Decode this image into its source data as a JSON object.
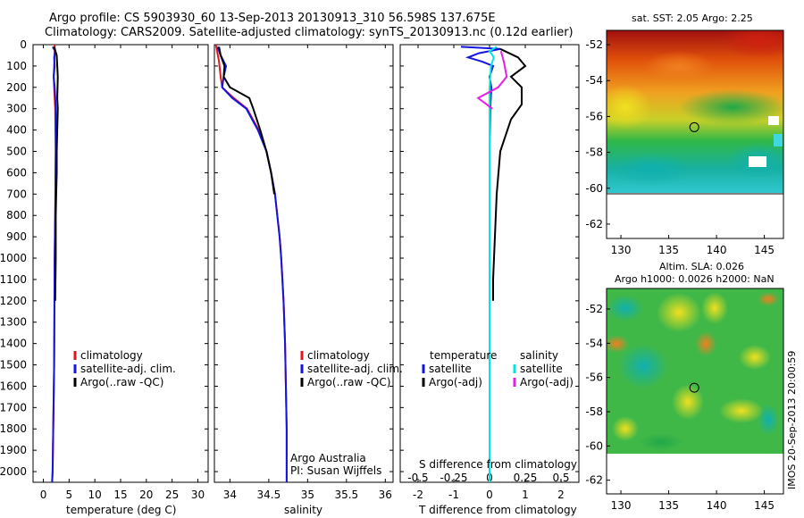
{
  "header": {
    "line1": "Argo profile: CS 5903930_60 13-Sep-2013 20130913_310 56.598S 137.675E",
    "line2": "Climatology: CARS2009. Satellite-adjusted climatology: synTS_20130913.nc (0.12d earlier)"
  },
  "sst_map": {
    "title": "sat. SST: 2.05 Argo: 2.25"
  },
  "sla_map": {
    "title_line1": "Altim. SLA: 0.026",
    "title_line2": "Argo h1000: 0.0026 h2000: NaN"
  },
  "credits": {
    "agency": "Argo Australia",
    "pi": "PI: Susan Wijffels",
    "stamp": "IMOS 20-Sep-2013 20:00:59"
  },
  "colors": {
    "climatology": "#e8141c",
    "satellite": "#1414e0",
    "argo": "#000000",
    "sal_satellite": "#00e6e6",
    "sal_argo": "#e61ee6"
  },
  "chart_data": [
    {
      "type": "line",
      "name": "temperature panel",
      "xlabel": "temperature (deg C)",
      "ylabel": "",
      "xlim": [
        -2,
        32
      ],
      "ylim": [
        2050,
        0
      ],
      "xticks": [
        "0",
        "5",
        "10",
        "15",
        "20",
        "25",
        "30"
      ],
      "yticks": [
        "0",
        "100",
        "200",
        "300",
        "400",
        "500",
        "600",
        "700",
        "800",
        "900",
        "1000",
        "1100",
        "1200",
        "1300",
        "1400",
        "1500",
        "1600",
        "1700",
        "1800",
        "1900",
        "2000"
      ],
      "legend": [
        "climatology",
        "satellite-adj. clim.",
        "Argo(..raw -QC)"
      ],
      "series": [
        {
          "name": "climatology",
          "depth": [
            0,
            50,
            100,
            150,
            200,
            300,
            500,
            800,
            1000,
            1500,
            2000,
            2050
          ],
          "values": [
            2.2,
            2.2,
            2.1,
            2.0,
            2.1,
            2.3,
            2.4,
            2.3,
            2.2,
            2.1,
            1.8,
            1.7
          ]
        },
        {
          "name": "satellite-adj. clim.",
          "depth": [
            10,
            30,
            60,
            100,
            150,
            200,
            300,
            500,
            800,
            1000,
            1500,
            2000,
            2050
          ],
          "values": [
            1.8,
            2.3,
            2.1,
            2.2,
            2.0,
            2.2,
            2.4,
            2.4,
            2.3,
            2.2,
            2.1,
            1.8,
            1.7
          ]
        },
        {
          "name": "Argo(..raw -QC)",
          "depth": [
            10,
            50,
            100,
            150,
            250,
            300,
            400,
            500,
            600,
            700,
            800,
            1000,
            1200
          ],
          "values": [
            2.1,
            2.6,
            2.7,
            2.8,
            2.7,
            2.8,
            2.7,
            2.6,
            2.6,
            2.5,
            2.4,
            2.4,
            2.3
          ]
        }
      ]
    },
    {
      "type": "line",
      "name": "salinity panel",
      "xlabel": "salinity",
      "xlim": [
        33.8,
        36.1
      ],
      "ylim": [
        2050,
        0
      ],
      "xticks": [
        "34",
        "34.5",
        "35",
        "35.5",
        "36"
      ],
      "legend": [
        "climatology",
        "satellite-adj. clim.",
        "Argo(..raw -QC)"
      ],
      "series": [
        {
          "name": "climatology",
          "depth": [
            0,
            80,
            150,
            200,
            250,
            300,
            400,
            500,
            600,
            700,
            800,
            900,
            1000,
            1200,
            1400,
            1600,
            1800,
            2000,
            2050
          ],
          "values": [
            33.82,
            33.86,
            33.88,
            33.9,
            34.05,
            34.22,
            34.37,
            34.47,
            34.53,
            34.58,
            34.61,
            34.64,
            34.66,
            34.69,
            34.71,
            34.72,
            34.73,
            34.73,
            34.73
          ]
        },
        {
          "name": "satellite-adj. clim.",
          "depth": [
            10,
            50,
            100,
            150,
            200,
            250,
            300,
            400,
            500,
            600,
            700,
            800,
            900,
            1000,
            1200,
            1400,
            1600,
            1800,
            2000,
            2050
          ],
          "values": [
            33.84,
            33.88,
            33.95,
            33.92,
            33.9,
            34.03,
            34.21,
            34.36,
            34.47,
            34.53,
            34.58,
            34.61,
            34.64,
            34.66,
            34.69,
            34.71,
            34.72,
            34.73,
            34.73,
            34.73
          ]
        },
        {
          "name": "Argo(..raw -QC)",
          "depth": [
            10,
            50,
            100,
            150,
            200,
            250,
            300,
            400,
            500,
            600,
            700
          ],
          "values": [
            33.86,
            33.88,
            33.93,
            33.92,
            34.0,
            34.25,
            34.3,
            34.39,
            34.47,
            34.53,
            34.57
          ]
        }
      ]
    },
    {
      "type": "line",
      "name": "difference panel",
      "xlabel": "T difference from climatology",
      "xlabel2": "S difference from climatology",
      "xlim": [
        -2.5,
        2.5
      ],
      "ylim": [
        2050,
        0
      ],
      "xticks_T": [
        "-2",
        "-1",
        "0",
        "1",
        "2"
      ],
      "xticks_S": [
        "-0.5",
        "-0.25",
        "0",
        "0.25",
        "0.5"
      ],
      "legend": {
        "temperature": [
          "satellite",
          "Argo(-adj)"
        ],
        "salinity": [
          "satellite",
          "Argo(-adj)"
        ],
        "temperature_label": "temperature",
        "salinity_label": "salinity"
      },
      "series": [
        {
          "name": "satellite",
          "depth": [
            10,
            20,
            40,
            60,
            80,
            100,
            150,
            200,
            300,
            500,
            1000,
            2000
          ],
          "values": [
            -0.8,
            0.3,
            -0.3,
            -0.6,
            -0.2,
            0.1,
            0.0,
            0.05,
            0.02,
            0.0,
            0.0,
            0.0
          ]
        },
        {
          "name": "Argo(-adj)",
          "depth": [
            20,
            60,
            100,
            150,
            200,
            280,
            350,
            500,
            700,
            900,
            1100,
            1200
          ],
          "values": [
            0.3,
            0.8,
            1.0,
            0.6,
            0.9,
            0.9,
            0.6,
            0.3,
            0.2,
            0.15,
            0.1,
            0.1
          ]
        },
        {
          "name": "satellite (S)",
          "depth": [
            10,
            30,
            60,
            100,
            200,
            400,
            800,
            1200,
            1600,
            2000,
            2050
          ],
          "values": [
            0.05,
            0.0,
            0.03,
            0.01,
            0.0,
            0.0,
            0.0,
            0.0,
            0.0,
            0.0,
            0.0
          ]
        },
        {
          "name": "Argo(-adj) (S)",
          "depth": [
            30,
            80,
            150,
            200,
            250,
            300
          ],
          "values": [
            0.08,
            0.1,
            0.12,
            0.06,
            -0.08,
            0.02
          ]
        }
      ]
    },
    {
      "type": "heatmap",
      "name": "sst map",
      "xlim": [
        128.5,
        147
      ],
      "ylim": [
        -62.8,
        -51.2
      ],
      "xticks": [
        "130",
        "135",
        "140",
        "145"
      ],
      "yticks": [
        "-52",
        "-54",
        "-56",
        "-58",
        "-60",
        "-62"
      ],
      "marker": {
        "lon": 137.675,
        "lat": -56.598
      }
    },
    {
      "type": "heatmap",
      "name": "sla map",
      "xlim": [
        128.5,
        147
      ],
      "ylim": [
        -62.8,
        -50.8
      ],
      "xticks": [
        "130",
        "135",
        "140",
        "145"
      ],
      "yticks": [
        "-52",
        "-54",
        "-56",
        "-58",
        "-60",
        "-62"
      ],
      "marker": {
        "lon": 137.675,
        "lat": -56.598
      }
    }
  ]
}
